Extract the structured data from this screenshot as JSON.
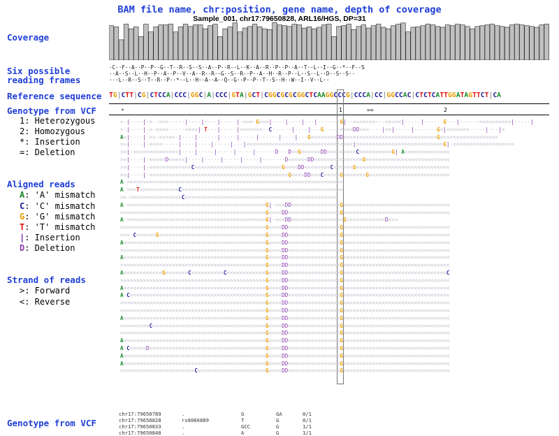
{
  "header": {
    "title": "BAM file name, chr:position, gene name, depth of coverage",
    "subtitle": "Sample_001, chr17:79650828, ARL16/HGS, DP=31"
  },
  "labels": {
    "coverage": "Coverage",
    "frames_1": "Six possible",
    "frames_2": "reading frames",
    "reference": "Reference sequence",
    "genotype_top": "Genotype from VCF",
    "aligned": "Aligned reads",
    "strand": "Strand of reads",
    "genotype_bottom": "Genotype from VCF"
  },
  "genotype_legend": {
    "l1": "1: Heterozygous",
    "l2": "2: Homozygous",
    "l3": "*: Insertion",
    "l4": "=: Deletion"
  },
  "aligned_legend": {
    "a_sym": "A",
    "a_txt": ": 'A' mismatch",
    "c_sym": "C",
    "c_txt": ": 'C' mismatch",
    "g_sym": "G",
    "g_txt": ": 'G' mismatch",
    "t_sym": "T",
    "t_txt": ": 'T' mismatch",
    "i_sym": "|",
    "i_txt": ": Insertion",
    "d_sym": "D",
    "d_txt": ": Deletion"
  },
  "strand_legend": {
    "fwd": ">: Forward",
    "rev": "<: Reverse"
  },
  "coverage_bars": [
    0.88,
    0.85,
    0.52,
    0.92,
    0.8,
    0.85,
    0.6,
    0.92,
    0.72,
    0.85,
    0.9,
    0.9,
    0.92,
    0.72,
    0.85,
    0.92,
    0.86,
    0.9,
    0.9,
    0.8,
    0.88,
    0.92,
    0.6,
    0.8,
    0.85,
    0.95,
    0.72,
    0.82,
    0.86,
    0.92,
    0.85,
    0.8,
    0.78,
    0.96,
    0.9,
    0.88,
    0.86,
    0.92,
    0.9,
    0.82,
    0.85,
    0.8,
    0.84,
    0.9,
    0.92,
    0.6,
    0.86,
    0.88,
    0.92,
    0.78,
    0.86,
    0.9,
    0.82,
    0.88,
    0.92,
    0.84,
    0.8,
    0.88,
    0.92,
    0.95,
    0.72,
    0.84,
    0.85,
    0.88,
    0.92,
    0.9,
    0.86,
    0.84,
    0.9,
    0.88,
    0.92,
    0.9,
    0.86,
    0.8,
    0.86,
    0.88,
    0.9,
    0.92,
    0.88,
    0.86,
    0.84,
    0.9,
    0.92,
    0.9,
    0.88,
    0.86,
    0.84,
    0.9,
    0.92
  ],
  "reading_frames": [
    "·C··F··A··P··P··G··T··R··S··S··A··P··R··L··K··A··R··P··P··A··T··L··I··G··*··F··S",
    "··A··S··L··H··P··A··P··V··A··R··R··G··S··R··P··A··H··R··P··L··S··L··D··S··S··",
    "···L··R··S··T··R··P··*··L··H··A··A··Q··G··P··P··T··S··H··W··I··V··L··"
  ],
  "reference": {
    "sequence": "TGICTTICGICTCCAICCCIGGCIAICCCIGTAIGCTICGGCGCGCGGCTCAAGGCCCGICCCAICCIGGCCACICTCTCATTGGATAGTTCTICA"
  },
  "genotype_marks": {
    "star": "*",
    "one": "1",
    "eq": "==",
    "two": "2"
  },
  "reads": [
    ">·|····|·>··>>>·····|····|····|·····|·>>>·G>>>|····|····|···|·······G|··<<<<<<<···<<<<<|·····|······G···|······<<<<<<<<<<|·····|",
    ">·|····|·>·>>>>·····<<<<|·T···|·····|<<<<<<<··C······|····|···G·····<<<<DD<<<····|<<|·····|·······G<|<<<<<<<·····|···|<",
    "A<|····|·>>·<<<<<·|····|······|·····|·····|······|····|···G<<<<<<<<DD<<<<<<<<<<<<<<<<<<<<<<<<<<<<<G<<<<<<<<<<<<<<<<<<",
    ">>|····|·<<<<·····|····|····|·····|···|<<<<<<<<<<<<<<<<<<<<<<<<<<<<<<<<<|>>>>>>>>>>>>>>>>>>>>>>>>>>>G|·<<<<<<<<<<<<<<<<<<<",
    ">>|·>>>>>>>>>>>>>>|····|·····|·····|·····|······D···D<<G<<<<<<DD<<<<<<<<<C<<<<<<<<<<G|·A<<<<<<<<<<<<<<",
    ">>|····|·<<<<<D<<<<<|····|·····|·····|·····|·······D<<<<<<DD<<<<<<<<<<<<<<<G<<<<<<<<<<<<<<<<<<<<<<<<<<",
    ">>|····|·<<<<<<<<<<<<<C<<<<<<<<<<<<<<<<<<<<<<<<<<<G<<<<DD<<<<<<<<C<<<<<<G<<<<<<<<<<<<<<<<<<<<<<<<<<<<<",
    ">>|····|·<<<<<<<<<<<<<<<<<<<<<<<<<<<<<<<<<<<<<<<<<<<G<<<<DD<<<C<<<<<G<<<<<<<G<<<<<<<<<<<<<<<<<<<<<<<<<",
    "A·>>>>>>>>>>>>>>>>>>>>>>>>>>>>>>>>>>>>>>>>>>>>>>>>>>>>>>>>>>>>>>>>>>>",
    "A·>>>T>>>>>>>>>>>>C>>>>>>>>>>>>>>>>>>>>>>>>>>>>>>>>>>>>>>>>>>>>>>>>>>",
    ">>·>>>>>>>>>>>>>>>>C<<<<<<<<<<<<<<<<<<<<<<<<<<<<<<<<<<<<<<<<<<<<<<<",
    "A·>>>>>>>>>>>>>>>>>>>>>>>>>>>>>>>>>>>>>>>>>>>G|·<<<DD<<<<<<<<<<<<<<<G<<<<<<<<<<<<<<<<<<<<<<<<<<<<<<<<<",
    ">>>>>>>>>>>>>>>>>>>>>>>>>>>>>>>>>>>>>>>>>>>>>G<<<<DD<<<<<<<<<<<<<<<<G<<<<<<<<<<<<<<<<<<<<<<<<<<<<<<<<<",
    "A·>>>>>>>>>>>>>>>>>>>>>>>>>>>>>>>>>>>>>>>>>>>G|·<<<DD<<<<<<<<<<<<<<<<G<<<<<<<<<<<<D>>>",
    ">>>>>>>>>>>>>>>>>>>>>>>>>>>>>>>>>>>>>>>>>>>>>G<<<<DD<<<<<<<<<<<<<<<<G<<<<<<<<<<<<<<<<<<<<<<<<<<<<<<<<<",
    ">>>·C<<<<<<G<<<<<<<<<<<<<<<<<<<<<<<<<<<<<<<<<G<<<<DD<<<<<<<<<<<<<<<<G<<<<<<<<<<<<<<<<<<<<<<<<<<<<<<<<<",
    "A<<<<<<<<<<<<<<<<<<<<<<<<<<<<<<<<<<<<<<<<<<<<G<<<<DD<<<<<<<<<<<<<<<<G<<<<<<<<<<<<<<<<<<<<<<<<<<<<<<<<<",
    ">>>>>>>>>>>>>>>>>>>>>>>>>>>>>>>>>>>>>>>>>>>>>G<<<<DD<<<<<<<<<<<<<<<<G<<<<<<<<<<<<<<<<<<<<<<<<<<<<<<<<<",
    "A<<<<<<<<<<<<<<<<<<<<<<<<<<<<<<<<<<<<<<<<<<<<G<<<<DD<<<<<<<<<<<<<<<<G<<<<<<<<<<<<<<<<<<<<<<<<<<<<<<<<<",
    ">>>>>>>>>>>>>>>>>>>>>>>>>>>>>>>>>>>>>>>>>>>>>G<<<<DD<<<<<<<<<<<<<<<<G<<<<<<<<<<<<<<<<<<<<<<<<<<<<<<<<<",
    "A<<<<<<<<<<<<G<<<<<<<C<<<<<<<<<<C<<<<<<<<<<<<G<<<<DD<<<<<<<<<<<<<<<<G<<<<<<<<<<<<<<<<<<<<<<<<<<<<<<<<C",
    ">>>>>>>>>>>>>>>>>>>>>>>>>>>>>>>>>>>>>>>>>>>>>G<<<<DD<<<<<<<<<<<<<<<<G<<<<<<<<<<<<<<<<<<<<<<<<<<<<<<<<<",
    "A<<<<<<<<<<<<<<<<<<<<<<<<<<<<<<<<<<<<<<<<<<<<G<<<<DD<<<<<<<<<<<<<<<<G<<<<<<<<<<<<<<<<<<<<<<<<<<<<<<<<<",
    "A·C<<<<<<<<<<<<<<<<<<<<<<<<<<<<<<<<<<<<<<<<<<G<<<<DD<<<<<<<<<<<<<<<<G<<<<<<<<<<<<<<<<<<<<<<<<<<<<<<<<<",
    ">>>>>>>>>>>>>>>>>>>>>>>>>>>>>>>>>>>>>>>>>>>>>G<<<<DD<<<<<<<<<<<<<<<<G<<<<<<<<<<<<<<<<<<<<<<<<<<<<<<<<<",
    ">>>>>>>>>>>>>>>>>>>>>>>>>>>>>>>>>>>>>>>>>>>>>G<<<<DD<<<<<<<<<<<<<<<<G<<<<<<<<<<<<<<<<<<<<<<<<<<<<<<<<<",
    "A<<<<<<<<<<<<<<<<<<<<<<<<<<<<<<<<<<<<<<<<<<<<G<<<<DD<<<<<<<<<<<<<<<<G<<<<<<<<<<<<<<<<<<<<<<<<<<<<<<<<<",
    ">>>>>>>>>C<<<<<<<<<<<<<<<<<<<<<<<<<<<<<<<<<<<G<<<<DD<<<<<<<<<<<<<<<<G<<<<<<<<<<<<<<<<<<<<<<<<<<<<<<<<<",
    ">>>>>>>>>>>>>>>>>>>>>>>>>>>>>>>>>>>>>>>>>>>>>G<<<<DD<<<<<<<<<<<<<<<<G<<<<<<<<<<<<<<<<<<<<<<<<<<<<<<<<<",
    "A<<<<<<<<<<<<<<<<<<<<<<<<<<<<<<<<<<<<<<<<<<<<G<<<<DD<<<<<<<<<<<<<<<<G<<<<<<<<<<<<<<<<<<<<<<<<<<<<<<<<<",
    "A·C<<<<<D<<<<<<<<<<<<<<<<<<<<<<<<<<<<<<<<<<<<G<<<<DD<<<<<<<<<<<<<<<<G<<<<<<<<<<<<<<<<<<<<<<<<<<<<<<<<<",
    "A<<<<<<<<<<<<<<<<<<<<<<<<<<<<<<<<<<<<<<<<<<<<G<<<<DD<<<<<<<<<<<<<<<<G<<<<<<<<<<<<<<<<<<<<<<<<<<<<<<<<<",
    "A<<<<<<<<<<<<<<<<<<<<<<<<<<<<<<<<<<<<<<<<<<<<G<<<<DD<<<<<<<<<<<<<<<<G<<<<<<<<<<<<<<<<<<<<<<<<<<<<<<<<<",
    ">>>>>>>>>>>>>>>>>>>>>>>C<<<<<<<<<<<<<<<<<<<<<G<<<<DD<<<<<<<<<<<<<<<<G<<<<<<<<<<<<<<<<<<<<<<<<<<<<<<<<<"
  ],
  "vcf": [
    {
      "pos": "chr17:79650789",
      "id": ".",
      "ref": "G",
      "alt": "GA",
      "gt": "0/1"
    },
    {
      "pos": "chr17:79650828",
      "id": "rs8066889",
      "ref": "T",
      "alt": "G",
      "gt": "0/1"
    },
    {
      "pos": "chr17:79650833",
      "id": ".",
      "ref": "GCC",
      "alt": "G",
      "gt": "1/1"
    },
    {
      "pos": "chr17:79650848",
      "id": ".",
      "ref": "A",
      "alt": "G",
      "gt": "1/1"
    }
  ],
  "colors": {
    "label_blue": "#1f3fd6",
    "A": "#1a8a2a",
    "C": "#1a1a99",
    "G": "#e89a00",
    "T": "#e01010",
    "insertion": "#7a2aa8",
    "deletion": "#8a3ab0",
    "bar_fill": "#c0c0c0"
  }
}
